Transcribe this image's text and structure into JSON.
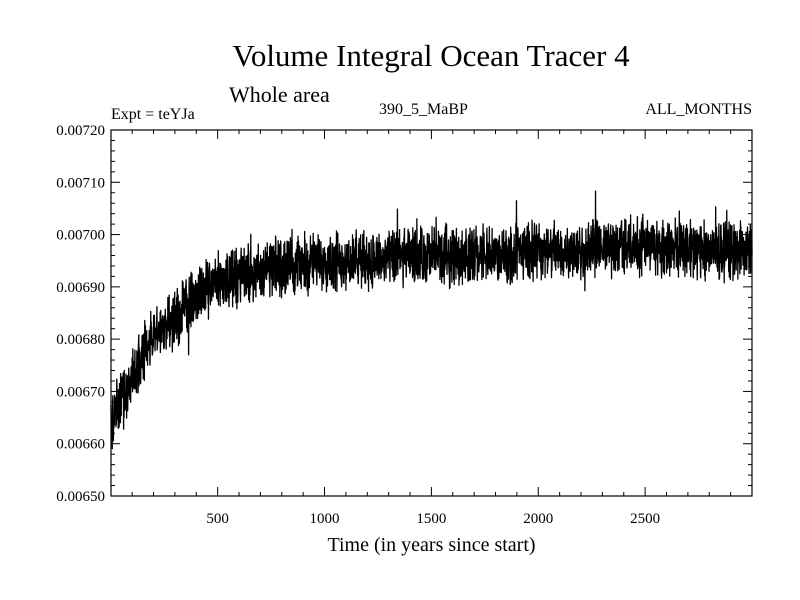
{
  "header": {
    "title": "Volume Integral Ocean Tracer 4",
    "subtitle": "Whole area",
    "experiment": "Expt = teYJa",
    "run_id": "390_5_MaBP",
    "period": "ALL_MONTHS"
  },
  "chart_data": {
    "type": "line",
    "title": "Volume Integral Ocean Tracer 4",
    "subtitle": "Whole area",
    "xlabel": "Time (in years since start)",
    "ylabel": "",
    "xlim": [
      1,
      3000
    ],
    "ylim": [
      0.0065,
      0.0072
    ],
    "xticks": [
      500,
      1000,
      1500,
      2000,
      2500
    ],
    "xtick_labels": [
      "500",
      "1000",
      "1500",
      "2000",
      "2500"
    ],
    "yticks": [
      0.0065,
      0.0066,
      0.0067,
      0.0068,
      0.0069,
      0.007,
      0.0071,
      0.0072
    ],
    "ytick_labels": [
      "0.00650",
      "0.00660",
      "0.00670",
      "0.00680",
      "0.00690",
      "0.00700",
      "0.00710",
      "0.00720"
    ],
    "grid": false,
    "series": [
      {
        "name": "Ocean Tracer 4",
        "description": "annual values; noisy rise from ~0.00663 toward a plateau ~0.00697",
        "x": [
          1,
          50,
          100,
          150,
          200,
          300,
          400,
          500,
          600,
          700,
          800,
          1000,
          1200,
          1500,
          1800,
          2000,
          2200,
          2500,
          2800,
          3000
        ],
        "values": [
          0.00664,
          0.00668,
          0.00673,
          0.00677,
          0.0068,
          0.00684,
          0.00688,
          0.00691,
          0.00692,
          0.00693,
          0.00694,
          0.00695,
          0.00695,
          0.00696,
          0.00696,
          0.00697,
          0.00697,
          0.00698,
          0.00697,
          0.00697
        ]
      }
    ]
  }
}
